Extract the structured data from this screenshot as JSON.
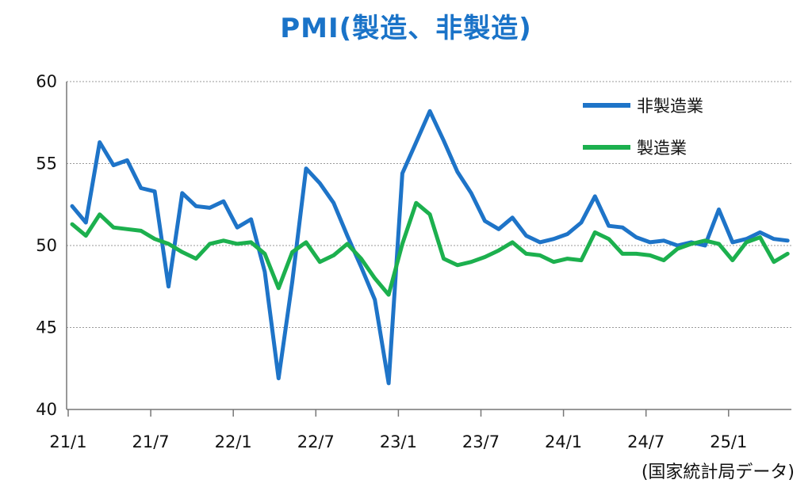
{
  "chart_data": {
    "type": "line",
    "title": "PMI(製造、非製造)",
    "source": "(国家統計局データ)",
    "ylim": [
      40,
      60
    ],
    "yticks": [
      40,
      45,
      50,
      55,
      60
    ],
    "xticks": [
      {
        "label": "21/1",
        "index": 0
      },
      {
        "label": "21/7",
        "index": 6
      },
      {
        "label": "22/1",
        "index": 12
      },
      {
        "label": "22/7",
        "index": 18
      },
      {
        "label": "23/1",
        "index": 24
      },
      {
        "label": "23/7",
        "index": 30
      },
      {
        "label": "24/1",
        "index": 36
      },
      {
        "label": "24/7",
        "index": 42
      },
      {
        "label": "25/1",
        "index": 48
      }
    ],
    "grid": true,
    "legend_position": "top-right",
    "series": [
      {
        "name": "非製造業",
        "color": "#1e74c8",
        "values": [
          52.4,
          51.4,
          56.3,
          54.9,
          55.2,
          53.5,
          53.3,
          47.5,
          53.2,
          52.4,
          52.3,
          52.7,
          51.1,
          51.6,
          48.4,
          41.9,
          47.8,
          54.7,
          53.8,
          52.6,
          50.6,
          48.7,
          46.7,
          41.6,
          54.4,
          56.3,
          58.2,
          56.4,
          54.5,
          53.2,
          51.5,
          51.0,
          51.7,
          50.6,
          50.2,
          50.4,
          50.7,
          51.4,
          53.0,
          51.2,
          51.1,
          50.5,
          50.2,
          50.3,
          50.0,
          50.2,
          50.0,
          52.2,
          50.2,
          50.4,
          50.8,
          50.4,
          50.3
        ]
      },
      {
        "name": "製造業",
        "color": "#1cb04e",
        "values": [
          51.3,
          50.6,
          51.9,
          51.1,
          51.0,
          50.9,
          50.4,
          50.1,
          49.6,
          49.2,
          50.1,
          50.3,
          50.1,
          50.2,
          49.5,
          47.4,
          49.6,
          50.2,
          49.0,
          49.4,
          50.1,
          49.2,
          48.0,
          47.0,
          50.1,
          52.6,
          51.9,
          49.2,
          48.8,
          49.0,
          49.3,
          49.7,
          50.2,
          49.5,
          49.4,
          49.0,
          49.2,
          49.1,
          50.8,
          50.4,
          49.5,
          49.5,
          49.4,
          49.1,
          49.8,
          50.1,
          50.3,
          50.1,
          49.1,
          50.2,
          50.5,
          49.0,
          49.5
        ]
      }
    ]
  }
}
